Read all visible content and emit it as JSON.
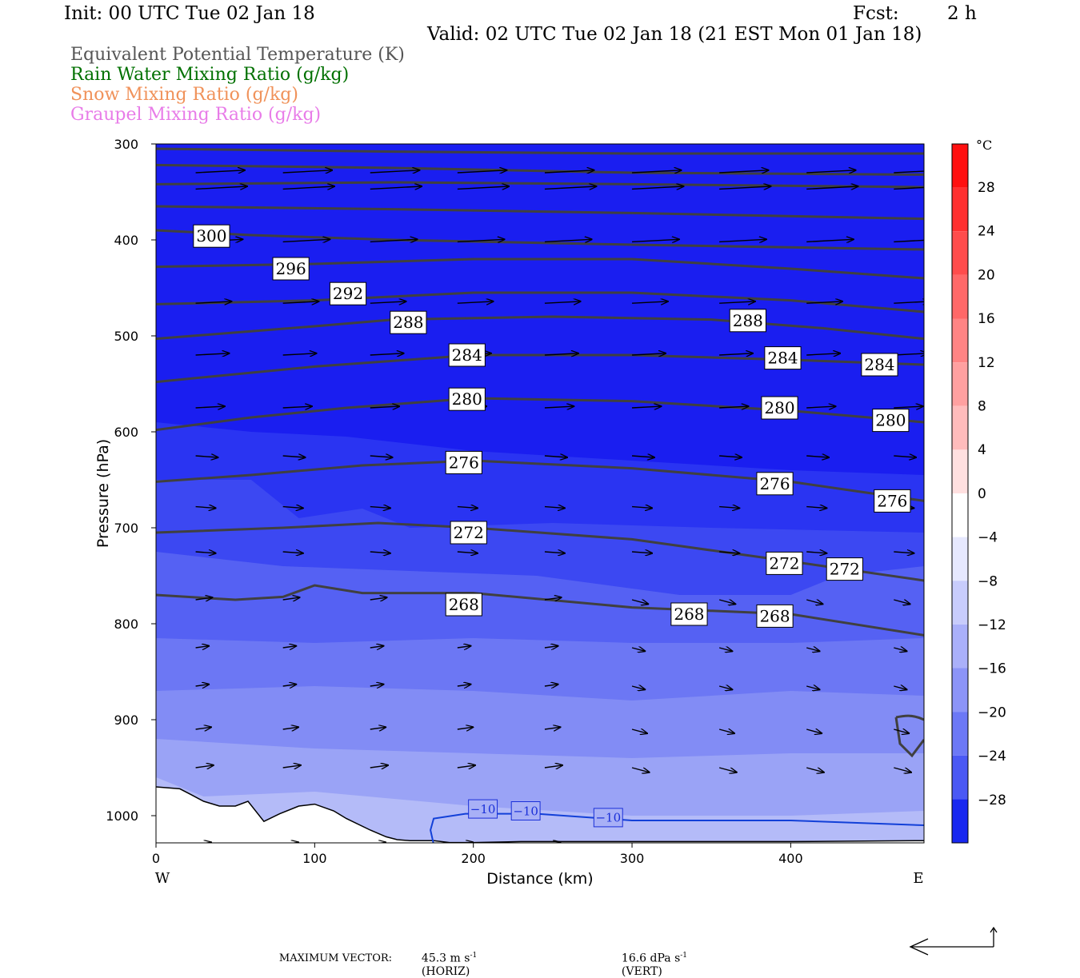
{
  "header": {
    "init": "Init: 00 UTC Tue 02 Jan 18",
    "fcst_label": "Fcst:",
    "fcst_value": "2 h",
    "valid": "Valid: 02 UTC Tue 02 Jan 18 (21 EST Mon 01 Jan 18)"
  },
  "legend": [
    {
      "label": "Equivalent Potential Temperature (K)",
      "color": "#555555"
    },
    {
      "label": "Rain Water Mixing Ratio (g/kg)",
      "color": "#007000"
    },
    {
      "label": "Snow Mixing Ratio (g/kg)",
      "color": "#f0925a"
    },
    {
      "label": "Graupel Mixing Ratio (g/kg)",
      "color": "#e87ce8"
    }
  ],
  "chart_data": {
    "type": "cross-section",
    "xlabel": "Distance (km)",
    "ylabel": "Pressure (hPa)",
    "xlim": [
      0,
      484
    ],
    "ylim": [
      1030,
      300
    ],
    "x_ticks": [
      "0",
      "100",
      "200",
      "300",
      "400"
    ],
    "y_ticks": [
      "300",
      "400",
      "500",
      "600",
      "700",
      "800",
      "900",
      "1000"
    ],
    "x_end_labels": {
      "left": "W",
      "right": "E"
    },
    "colorbar": {
      "unit": "°C",
      "ticks": [
        "28",
        "24",
        "20",
        "16",
        "12",
        "8",
        "4",
        "0",
        "−4",
        "−8",
        "−12",
        "−16",
        "−20",
        "−24",
        "−28"
      ]
    },
    "theta_e_labels": [
      {
        "x": 35,
        "p": 396,
        "value": "300"
      },
      {
        "x": 85,
        "p": 430,
        "value": "296"
      },
      {
        "x": 121,
        "p": 456,
        "value": "292"
      },
      {
        "x": 159,
        "p": 486,
        "value": "288"
      },
      {
        "x": 373,
        "p": 484,
        "value": "288"
      },
      {
        "x": 196,
        "p": 520,
        "value": "284"
      },
      {
        "x": 395,
        "p": 523,
        "value": "284"
      },
      {
        "x": 456,
        "p": 530,
        "value": "284"
      },
      {
        "x": 196,
        "p": 566,
        "value": "280"
      },
      {
        "x": 393,
        "p": 575,
        "value": "280"
      },
      {
        "x": 463,
        "p": 588,
        "value": "280"
      },
      {
        "x": 194,
        "p": 632,
        "value": "276"
      },
      {
        "x": 390,
        "p": 654,
        "value": "276"
      },
      {
        "x": 464,
        "p": 672,
        "value": "276"
      },
      {
        "x": 197,
        "p": 705,
        "value": "272"
      },
      {
        "x": 396,
        "p": 737,
        "value": "272"
      },
      {
        "x": 434,
        "p": 743,
        "value": "272"
      },
      {
        "x": 194,
        "p": 780,
        "value": "268"
      },
      {
        "x": 336,
        "p": 790,
        "value": "268"
      },
      {
        "x": 390,
        "p": 792,
        "value": "268"
      }
    ],
    "temp_contour_labels": [
      {
        "x": 206,
        "p": 993,
        "value": "−10"
      },
      {
        "x": 233,
        "p": 995,
        "value": "−10"
      },
      {
        "x": 285,
        "p": 1002,
        "value": "−10"
      }
    ]
  },
  "footer": {
    "max_vector_label": "MAXIMUM VECTOR:",
    "horiz_value": "45.3 m s",
    "horiz_exp": "-1",
    "horiz_tag": "(HORIZ)",
    "vert_value": "16.6 dPa s",
    "vert_exp": "-1",
    "vert_tag": "(VERT)"
  }
}
